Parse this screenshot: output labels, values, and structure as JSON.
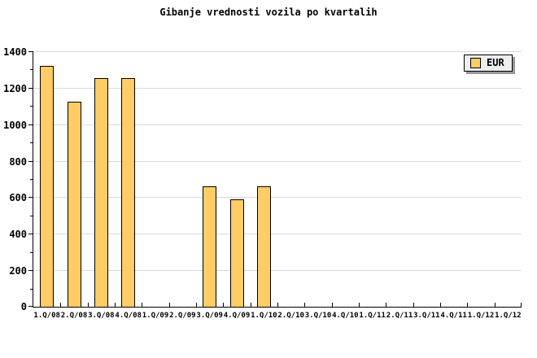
{
  "title": "Gibanje vrednosti vozila po kvartalih",
  "legend": {
    "label": "EUR",
    "position": "top-right"
  },
  "colors": {
    "background": "#ffffff",
    "bar_fill": "#ffcc66",
    "bar_border": "#000000",
    "grid": "#d8d8d8",
    "axis": "#000000",
    "text": "#000000",
    "legend_bg": "#eeeeee",
    "legend_shadow": "#999999"
  },
  "chart_data": {
    "type": "bar",
    "title": "Gibanje vrednosti vozila po kvartalih",
    "categories": [
      "1.Q/08",
      "2.Q/08",
      "3.Q/08",
      "4.Q/08",
      "1.Q/09",
      "2.Q/09",
      "3.Q/09",
      "4.Q/09",
      "1.Q/10",
      "2.Q/10",
      "3.Q/10",
      "4.Q/10",
      "1.Q/11",
      "2.Q/11",
      "3.Q/11",
      "4.Q/11",
      "1.Q/12",
      "1.Q/12"
    ],
    "series": [
      {
        "name": "EUR",
        "values": [
          1320,
          1125,
          1255,
          1255,
          null,
          null,
          660,
          590,
          660,
          null,
          null,
          null,
          null,
          null,
          null,
          null,
          null,
          null
        ]
      }
    ],
    "xlabel": "",
    "ylabel": "",
    "ylim": [
      0,
      1400
    ],
    "yticks": [
      0,
      200,
      400,
      600,
      800,
      1000,
      1200,
      1400
    ],
    "y_minor_tick_interval": 100,
    "grid": "horizontal",
    "legend_position": "top-right"
  }
}
